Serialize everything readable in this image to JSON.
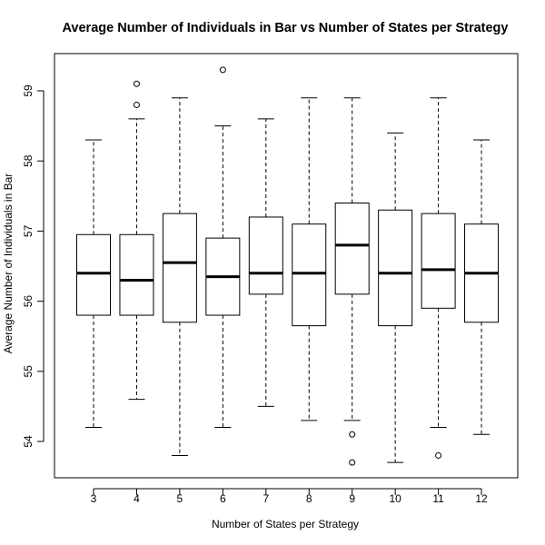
{
  "chart_data": {
    "type": "boxplot",
    "title": "Average Number of Individuals in Bar vs Number of States per Strategy",
    "xlabel": "Number of States per Strategy",
    "ylabel": "Average Number of Individuals in Bar",
    "categories": [
      "3",
      "4",
      "5",
      "6",
      "7",
      "8",
      "9",
      "10",
      "11",
      "12"
    ],
    "yticks": [
      "54",
      "55",
      "56",
      "57",
      "58",
      "59"
    ],
    "ylim": [
      53.5,
      59.55
    ],
    "boxes": [
      {
        "category": "3",
        "whisker_low": 54.2,
        "q1": 55.8,
        "median": 56.4,
        "q3": 56.95,
        "whisker_high": 58.3,
        "outliers": []
      },
      {
        "category": "4",
        "whisker_low": 54.6,
        "q1": 55.8,
        "median": 56.3,
        "q3": 56.95,
        "whisker_high": 58.6,
        "outliers": [
          58.8,
          59.1
        ]
      },
      {
        "category": "5",
        "whisker_low": 53.8,
        "q1": 55.7,
        "median": 56.55,
        "q3": 57.25,
        "whisker_high": 58.9,
        "outliers": []
      },
      {
        "category": "6",
        "whisker_low": 54.2,
        "q1": 55.8,
        "median": 56.35,
        "q3": 56.9,
        "whisker_high": 58.5,
        "outliers": [
          59.3
        ]
      },
      {
        "category": "7",
        "whisker_low": 54.5,
        "q1": 56.1,
        "median": 56.4,
        "q3": 57.2,
        "whisker_high": 58.6,
        "outliers": []
      },
      {
        "category": "8",
        "whisker_low": 54.3,
        "q1": 55.65,
        "median": 56.4,
        "q3": 57.1,
        "whisker_high": 58.9,
        "outliers": []
      },
      {
        "category": "9",
        "whisker_low": 54.3,
        "q1": 56.1,
        "median": 56.8,
        "q3": 57.4,
        "whisker_high": 58.9,
        "outliers": [
          54.1,
          53.7
        ]
      },
      {
        "category": "10",
        "whisker_low": 53.7,
        "q1": 55.65,
        "median": 56.4,
        "q3": 57.3,
        "whisker_high": 58.4,
        "outliers": []
      },
      {
        "category": "11",
        "whisker_low": 54.2,
        "q1": 55.9,
        "median": 56.45,
        "q3": 57.25,
        "whisker_high": 58.9,
        "outliers": [
          53.8
        ]
      },
      {
        "category": "12",
        "whisker_low": 54.1,
        "q1": 55.7,
        "median": 56.4,
        "q3": 57.1,
        "whisker_high": 58.3,
        "outliers": []
      }
    ]
  }
}
